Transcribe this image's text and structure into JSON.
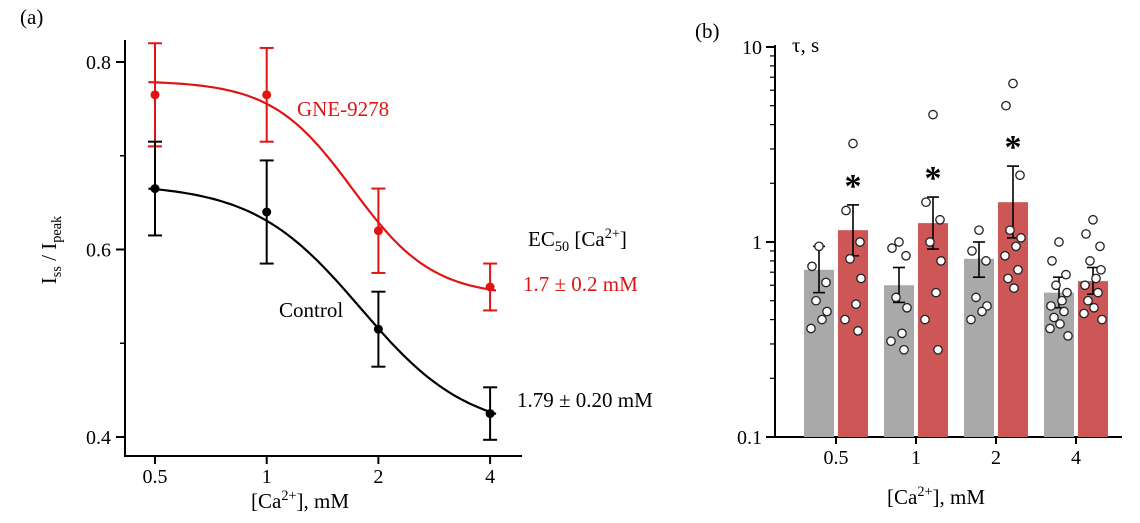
{
  "figure": {
    "background": "#ffffff"
  },
  "panel_a": {
    "label": "(a)",
    "y_label": {
      "i1": "I",
      "sub1": "ss",
      "mid": " / ",
      "i2": "I",
      "sub2": "peak"
    },
    "x_label": {
      "pre": "[Ca",
      "sup": "2+",
      "post": "], mM"
    },
    "curve_label_treated": "GNE-9278",
    "curve_label_control": "Control",
    "ec50_title": {
      "pre": "EC",
      "sub": "50",
      "mid": " [Ca",
      "sup": "2+",
      "post": "]"
    },
    "ec50_treated_value": "1.7 ± 0.2 mM",
    "ec50_control_value": "1.79 ± 0.20 mM"
  },
  "panel_b": {
    "label": "(b)",
    "y_label": "τ, s",
    "x_label": {
      "pre": "[Ca",
      "sup": "2+",
      "post": "], mM"
    }
  },
  "colors": {
    "treated_line": "#e11414",
    "treated_bar": "#cd5757",
    "control_line": "#000000",
    "control_bar": "#a9a9a9"
  },
  "chart_data": [
    {
      "type": "line",
      "title": "",
      "xlabel": "[Ca2+], mM",
      "ylabel": "Iss / Ipeak",
      "x_scale": "log2",
      "xlim": [
        0.42,
        4.6
      ],
      "ylim": [
        0.38,
        0.84
      ],
      "x_ticks": [
        0.5,
        1,
        2,
        4
      ],
      "x_tick_labels": [
        "0.5",
        "1",
        "2",
        "4"
      ],
      "y_ticks_major": [
        0.4,
        0.6,
        0.8
      ],
      "y_tick_labels": [
        "0.4",
        "0.6",
        "0.8"
      ],
      "y_ticks_minor": [
        0.5,
        0.7
      ],
      "legend_position": "inline-labels",
      "series": [
        {
          "name": "GNE-9278",
          "color": "#e11414",
          "x": [
            0.5,
            1,
            2,
            4
          ],
          "y": [
            0.765,
            0.765,
            0.62,
            0.56
          ],
          "err": [
            0.055,
            0.05,
            0.045,
            0.025
          ],
          "fit": {
            "model": "hill",
            "top": 0.78,
            "bottom": 0.55,
            "ec50": 1.7,
            "hill": 4
          },
          "ec50_label": "1.7 ± 0.2 mM"
        },
        {
          "name": "Control",
          "color": "#000000",
          "x": [
            0.5,
            1,
            2,
            4
          ],
          "y": [
            0.665,
            0.64,
            0.515,
            0.425
          ],
          "err": [
            0.05,
            0.055,
            0.04,
            0.028
          ],
          "fit": {
            "model": "hill",
            "top": 0.67,
            "bottom": 0.405,
            "ec50": 1.79,
            "hill": 3
          },
          "ec50_label": "1.79 ± 0.20 mM"
        }
      ]
    },
    {
      "type": "bar",
      "title": "",
      "xlabel": "[Ca2+], mM",
      "ylabel": "τ, s",
      "y_scale": "log10",
      "ylim": [
        0.1,
        10
      ],
      "y_ticks": [
        0.1,
        1,
        10
      ],
      "y_tick_labels": [
        "0.1",
        "1",
        "10"
      ],
      "categories": [
        "0.5",
        "1",
        "2",
        "4"
      ],
      "series": [
        {
          "name": "Control",
          "color": "#a9a9a9",
          "values": [
            0.72,
            0.6,
            0.82,
            0.55
          ],
          "err_hi": [
            0.95,
            0.74,
            1.0,
            0.66
          ],
          "err_lo": [
            0.55,
            0.49,
            0.66,
            0.46
          ],
          "points": [
            [
              0.95,
              0.75,
              0.62,
              0.5,
              0.44,
              0.4,
              0.36
            ],
            [
              1.0,
              0.93,
              0.85,
              0.52,
              0.46,
              0.34,
              0.31,
              0.28
            ],
            [
              1.15,
              0.9,
              0.8,
              0.52,
              0.47,
              0.44,
              0.4
            ],
            [
              1.0,
              0.8,
              0.68,
              0.6,
              0.55,
              0.5,
              0.47,
              0.44,
              0.41,
              0.38,
              0.36,
              0.33
            ]
          ]
        },
        {
          "name": "GNE-9278",
          "color": "#cd5757",
          "values": [
            1.15,
            1.25,
            1.6,
            0.63
          ],
          "err_hi": [
            1.55,
            1.7,
            2.45,
            0.74
          ],
          "err_lo": [
            0.85,
            0.92,
            1.05,
            0.54
          ],
          "significance": [
            "*",
            "*",
            "*",
            ""
          ],
          "points": [
            [
              3.2,
              1.45,
              1.0,
              0.82,
              0.65,
              0.48,
              0.4,
              0.35
            ],
            [
              4.5,
              1.6,
              1.3,
              1.0,
              0.8,
              0.55,
              0.4,
              0.28
            ],
            [
              6.5,
              5.0,
              2.2,
              1.15,
              1.05,
              0.95,
              0.85,
              0.72,
              0.65,
              0.58
            ],
            [
              1.3,
              1.1,
              0.95,
              0.8,
              0.72,
              0.65,
              0.6,
              0.55,
              0.5,
              0.46,
              0.43,
              0.4
            ]
          ]
        }
      ]
    }
  ]
}
